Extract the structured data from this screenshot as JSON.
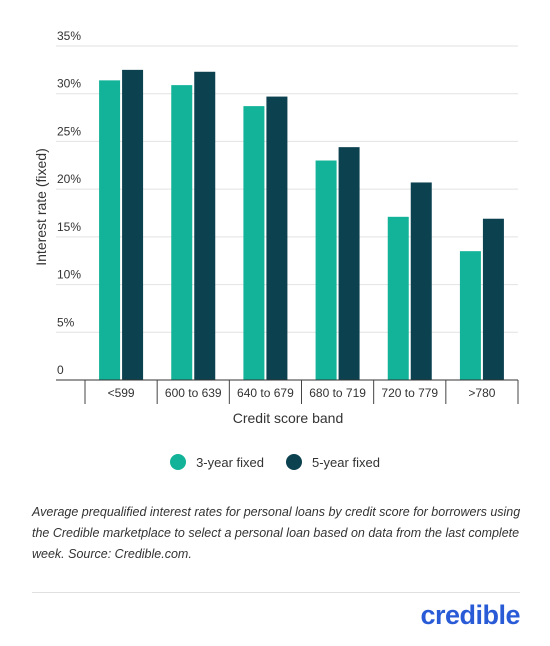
{
  "chart_data": {
    "type": "bar",
    "categories": [
      "<599",
      "600 to 639",
      "640 to 679",
      "680 to 719",
      "720 to 779",
      ">780"
    ],
    "series": [
      {
        "name": "3-year fixed",
        "values": [
          31.4,
          30.9,
          28.7,
          23.0,
          17.1,
          13.5
        ],
        "color": "#12b398"
      },
      {
        "name": "5-year fixed",
        "values": [
          32.5,
          32.3,
          29.7,
          24.4,
          20.7,
          16.9
        ],
        "color": "#0c4150"
      }
    ],
    "y_ticks": [
      "0",
      "5%",
      "10%",
      "15%",
      "20%",
      "25%",
      "30%",
      "35%"
    ],
    "ylim": [
      0,
      35
    ],
    "xlabel": "Credit score band",
    "ylabel": "Interest rate (fixed)",
    "grid": true,
    "legend_position": "bottom"
  },
  "caption": "Average prequalified interest rates for personal loans by credit score for borrowers using the Credible marketplace to select a personal loan based on data from the last complete week. Source: Credible.com.",
  "brand": {
    "name": "credible",
    "color": "#2a5bd7"
  }
}
